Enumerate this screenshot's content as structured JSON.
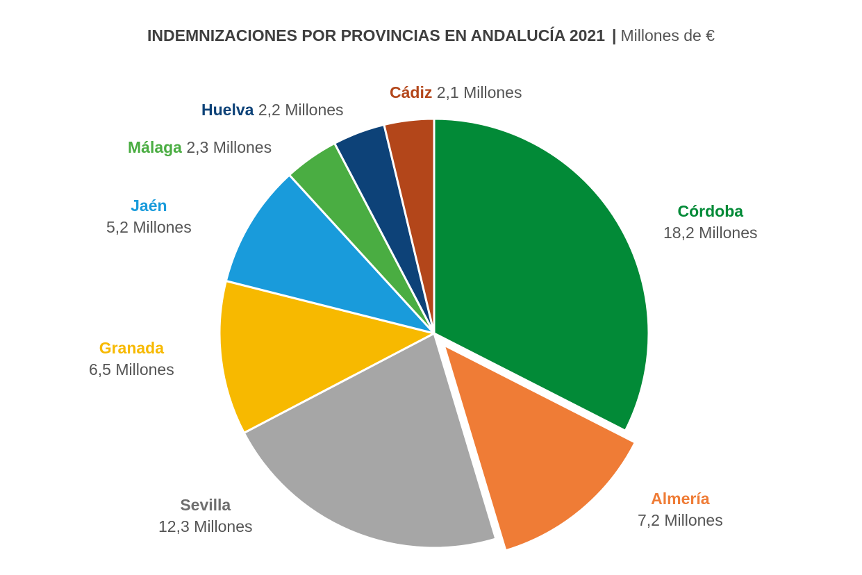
{
  "title": {
    "main": "INDEMNIZACIONES POR PROVINCIAS EN ANDALUCÍA 2021",
    "separator": "|",
    "unit": "Millones de €"
  },
  "chart_data": {
    "type": "pie",
    "title": "INDEMNIZACIONES POR PROVINCIAS EN ANDALUCÍA 2021",
    "unit": "Millones de €",
    "start": "12 o'clock",
    "direction": "clockwise",
    "exploded": "Almería",
    "slices": [
      {
        "name": "Córdoba",
        "value": 18.2,
        "value_label": "18,2 Millones",
        "color": "#028a37"
      },
      {
        "name": "Almería",
        "value": 7.2,
        "value_label": "7,2 Millones",
        "color": "#ef7c36"
      },
      {
        "name": "Sevilla",
        "value": 12.3,
        "value_label": "12,3 Millones",
        "color": "#a6a6a6"
      },
      {
        "name": "Granada",
        "value": 6.5,
        "value_label": "6,5 Millones",
        "color": "#f7b900"
      },
      {
        "name": "Jaén",
        "value": 5.2,
        "value_label": "5,2 Millones",
        "color": "#199bdb"
      },
      {
        "name": "Málaga",
        "value": 2.3,
        "value_label": "2,3 Millones",
        "color": "#4aad42"
      },
      {
        "name": "Huelva",
        "value": 2.2,
        "value_label": "2,2 Millones",
        "color": "#0d4278"
      },
      {
        "name": "Cádiz",
        "value": 2.1,
        "value_label": "2,1 Millones",
        "color": "#b3461a"
      }
    ],
    "label_colors": {
      "Córdoba": "#028a37",
      "Almería": "#ef7c36",
      "Sevilla": "#6f6f6f",
      "Granada": "#f7b900",
      "Jaén": "#199bdb",
      "Málaga": "#4aad42",
      "Huelva": "#0d4278",
      "Cádiz": "#b3461a"
    }
  }
}
